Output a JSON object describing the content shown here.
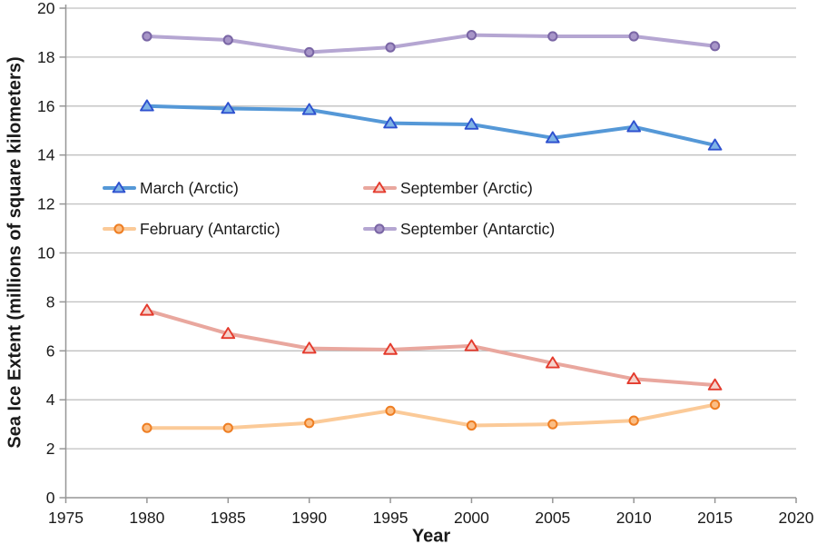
{
  "figure": {
    "background": "#ffffff"
  },
  "chart_data": {
    "type": "line",
    "title": "",
    "xlabel": "Year",
    "ylabel": "Sea Ice Extent (millions of square kilometers)",
    "x": [
      1980,
      1985,
      1990,
      1995,
      2000,
      2005,
      2010,
      2015
    ],
    "series": [
      {
        "name": "March (Arctic)",
        "marker": "triangle",
        "line_color": "#5598d7",
        "marker_stroke": "#2d50cf",
        "marker_fill": "#7fb3e6",
        "values": [
          16.0,
          15.9,
          15.85,
          15.3,
          15.25,
          14.7,
          15.15,
          14.4
        ]
      },
      {
        "name": "September (Arctic)",
        "marker": "triangle",
        "line_color": "#e9a79e",
        "marker_stroke": "#e43a2c",
        "marker_fill": "#f5d2cb",
        "values": [
          7.65,
          6.7,
          6.1,
          6.05,
          6.2,
          5.5,
          4.85,
          4.6
        ]
      },
      {
        "name": "February (Antarctic)",
        "marker": "circle",
        "line_color": "#fbca98",
        "marker_stroke": "#ee7e23",
        "marker_fill": "#fbbe85",
        "values": [
          2.85,
          2.85,
          3.05,
          3.55,
          2.95,
          3.0,
          3.15,
          3.8
        ]
      },
      {
        "name": "September (Antarctic)",
        "marker": "circle",
        "line_color": "#b5a6d2",
        "marker_stroke": "#7a66a5",
        "marker_fill": "#a795c8",
        "values": [
          18.85,
          18.7,
          18.2,
          18.4,
          18.9,
          18.85,
          18.85,
          18.45
        ]
      }
    ],
    "xlim": [
      1975,
      2020
    ],
    "ylim": [
      0,
      20
    ],
    "xticks": [
      1975,
      1980,
      1985,
      1990,
      1995,
      2000,
      2005,
      2010,
      2015,
      2020
    ],
    "yticks": [
      0,
      2,
      4,
      6,
      8,
      10,
      12,
      14,
      16,
      18,
      20
    ],
    "grid": "horizontal",
    "legend_position": "inside upper-left, 2 columns x 2 rows"
  },
  "colors": {
    "grid": "#c0c0c0",
    "axis": "#969696",
    "tick_text": "#1a1a1a"
  }
}
